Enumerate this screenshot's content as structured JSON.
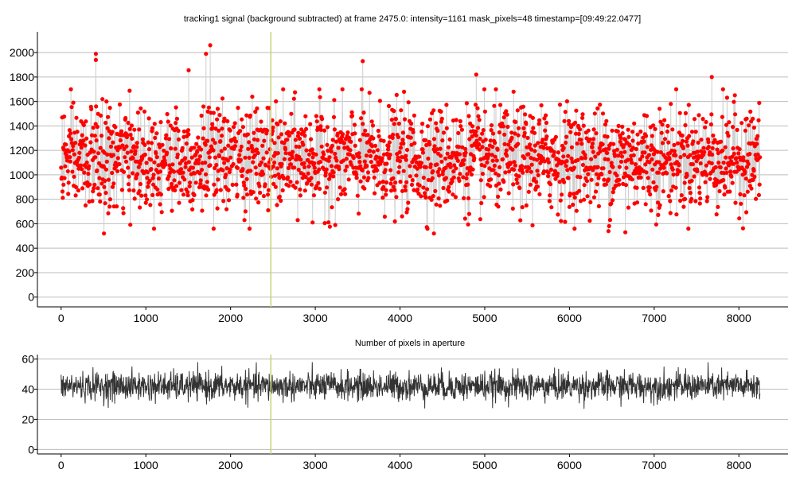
{
  "chart_data": [
    {
      "type": "scatter",
      "title": "tracking1 signal (background subtracted) at frame 2475.0: intensity=1161 mask_pixels=48 timestamp=[09:49:22.0477]",
      "xlabel": "",
      "ylabel": "",
      "xlim": [
        -280,
        8580
      ],
      "ylim": [
        -80,
        2170
      ],
      "x_ticks": [
        0,
        1000,
        2000,
        3000,
        4000,
        5000,
        6000,
        7000,
        8000
      ],
      "y_ticks": [
        0,
        200,
        400,
        600,
        800,
        1000,
        1200,
        1400,
        1600,
        1800,
        2000
      ],
      "grid": "horizontal",
      "current_frame": 2475,
      "current_frame_line_color": "#c8d27a",
      "marker_color": "#ff0000",
      "connector_color": "#d0d0d0",
      "series": [
        {
          "x_start": 0,
          "x_end": 8250,
          "sample_count": 8251,
          "typical_range": [
            600,
            1600
          ],
          "mean": 1130,
          "outliers": [
            {
              "x": 410,
              "y": 1990
            },
            {
              "x": 410,
              "y": 1940
            },
            {
              "x": 505,
              "y": 520
            },
            {
              "x": 1505,
              "y": 1855
            },
            {
              "x": 1710,
              "y": 1990
            },
            {
              "x": 1760,
              "y": 2060
            },
            {
              "x": 1800,
              "y": 560
            },
            {
              "x": 3560,
              "y": 1930
            },
            {
              "x": 4400,
              "y": 520
            },
            {
              "x": 4900,
              "y": 1820
            },
            {
              "x": 6460,
              "y": 540
            },
            {
              "x": 6660,
              "y": 530
            },
            {
              "x": 7680,
              "y": 1800
            }
          ]
        }
      ]
    },
    {
      "type": "line",
      "title": "Number of pixels in aperture",
      "xlabel": "",
      "ylabel": "",
      "xlim": [
        -280,
        8580
      ],
      "ylim": [
        -3,
        63
      ],
      "x_ticks": [
        0,
        1000,
        2000,
        3000,
        4000,
        5000,
        6000,
        7000,
        8000
      ],
      "y_ticks": [
        0,
        20,
        40,
        60
      ],
      "grid": "horizontal",
      "current_frame": 2475,
      "current_frame_line_color": "#c8d27a",
      "line_color": "#333333",
      "series": [
        {
          "x_start": 0,
          "x_end": 8250,
          "sample_count": 8251,
          "mean": 42,
          "typical_range": [
            32,
            52
          ],
          "max": 58,
          "min": 25
        }
      ]
    }
  ]
}
